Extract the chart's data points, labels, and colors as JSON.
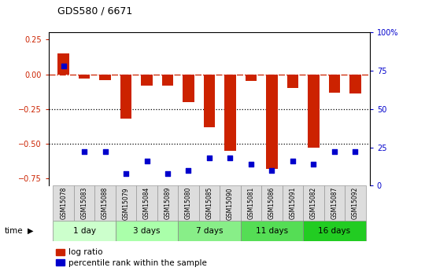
{
  "title": "GDS580 / 6671",
  "samples": [
    "GSM15078",
    "GSM15083",
    "GSM15088",
    "GSM15079",
    "GSM15084",
    "GSM15089",
    "GSM15080",
    "GSM15085",
    "GSM15090",
    "GSM15081",
    "GSM15086",
    "GSM15091",
    "GSM15082",
    "GSM15087",
    "GSM15092"
  ],
  "log_ratio": [
    0.15,
    -0.03,
    -0.04,
    -0.32,
    -0.08,
    -0.08,
    -0.2,
    -0.38,
    -0.55,
    -0.05,
    -0.68,
    -0.1,
    -0.53,
    -0.13,
    -0.14
  ],
  "pct_rank": [
    78,
    22,
    22,
    8,
    16,
    8,
    10,
    18,
    18,
    14,
    10,
    16,
    14,
    22,
    22
  ],
  "time_groups": [
    {
      "label": "1 day",
      "start": 0,
      "end": 3,
      "color": "#ccffcc"
    },
    {
      "label": "3 days",
      "start": 3,
      "end": 6,
      "color": "#aaffaa"
    },
    {
      "label": "7 days",
      "start": 6,
      "end": 9,
      "color": "#88ee88"
    },
    {
      "label": "11 days",
      "start": 9,
      "end": 12,
      "color": "#55dd55"
    },
    {
      "label": "16 days",
      "start": 12,
      "end": 15,
      "color": "#22cc22"
    }
  ],
  "bar_color": "#cc2200",
  "dot_color": "#0000cc",
  "dashed_line_color": "#cc2200",
  "dotted_line_color": "#000000",
  "ylim_left": [
    -0.8,
    0.3
  ],
  "ylim_right": [
    0,
    100
  ],
  "yticks_left": [
    -0.75,
    -0.5,
    -0.25,
    0,
    0.25
  ],
  "yticks_right": [
    0,
    25,
    50,
    75,
    100
  ],
  "legend_bar_label": "log ratio",
  "legend_dot_label": "percentile rank within the sample",
  "time_label": "time",
  "main_bg": "#ffffff",
  "sample_cell_color": "#dddddd"
}
